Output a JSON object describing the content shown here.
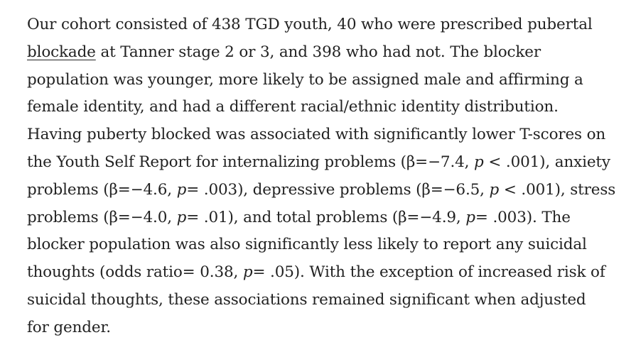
{
  "paragraph": {
    "line1": "Our cohort consisted of 438 TGD youth, 40 who were prescribed pubertal",
    "line2_link": "blockade",
    "line2_rest": " at Tanner stage 2 or 3, and 398 who had not. The blocker",
    "line3": "population was younger, more likely to be assigned male and affirming a",
    "line4": "female identity, and had a different racial/ethnic identity distribution.",
    "line5": "Having puberty blocked was associated with significantly lower T-scores on",
    "line6_a": "the Youth Self Report for internalizing problems (β=−7.4, ",
    "line6_p": "p",
    "line6_b": " < .001), anxiety",
    "line7_a": "problems (β=−4.6, ",
    "line7_p1": "p",
    "line7_b": "= .003), depressive problems (β=−6.5, ",
    "line7_p2": "p",
    "line7_c": " < .001), stress",
    "line8_a": "problems (β=−4.0, ",
    "line8_p1": "p",
    "line8_b": "= .01), and total problems (β=−4.9, ",
    "line8_p2": "p",
    "line8_c": "= .003). The",
    "line9": "blocker population was also significantly less likely to report any suicidal",
    "line10_a": "thoughts (odds ratio= 0.38, ",
    "line10_p": "p",
    "line10_b": "= .05). With the exception of increased risk of",
    "line11": "suicidal thoughts, these associations remained significant when adjusted",
    "line12": "for gender."
  }
}
